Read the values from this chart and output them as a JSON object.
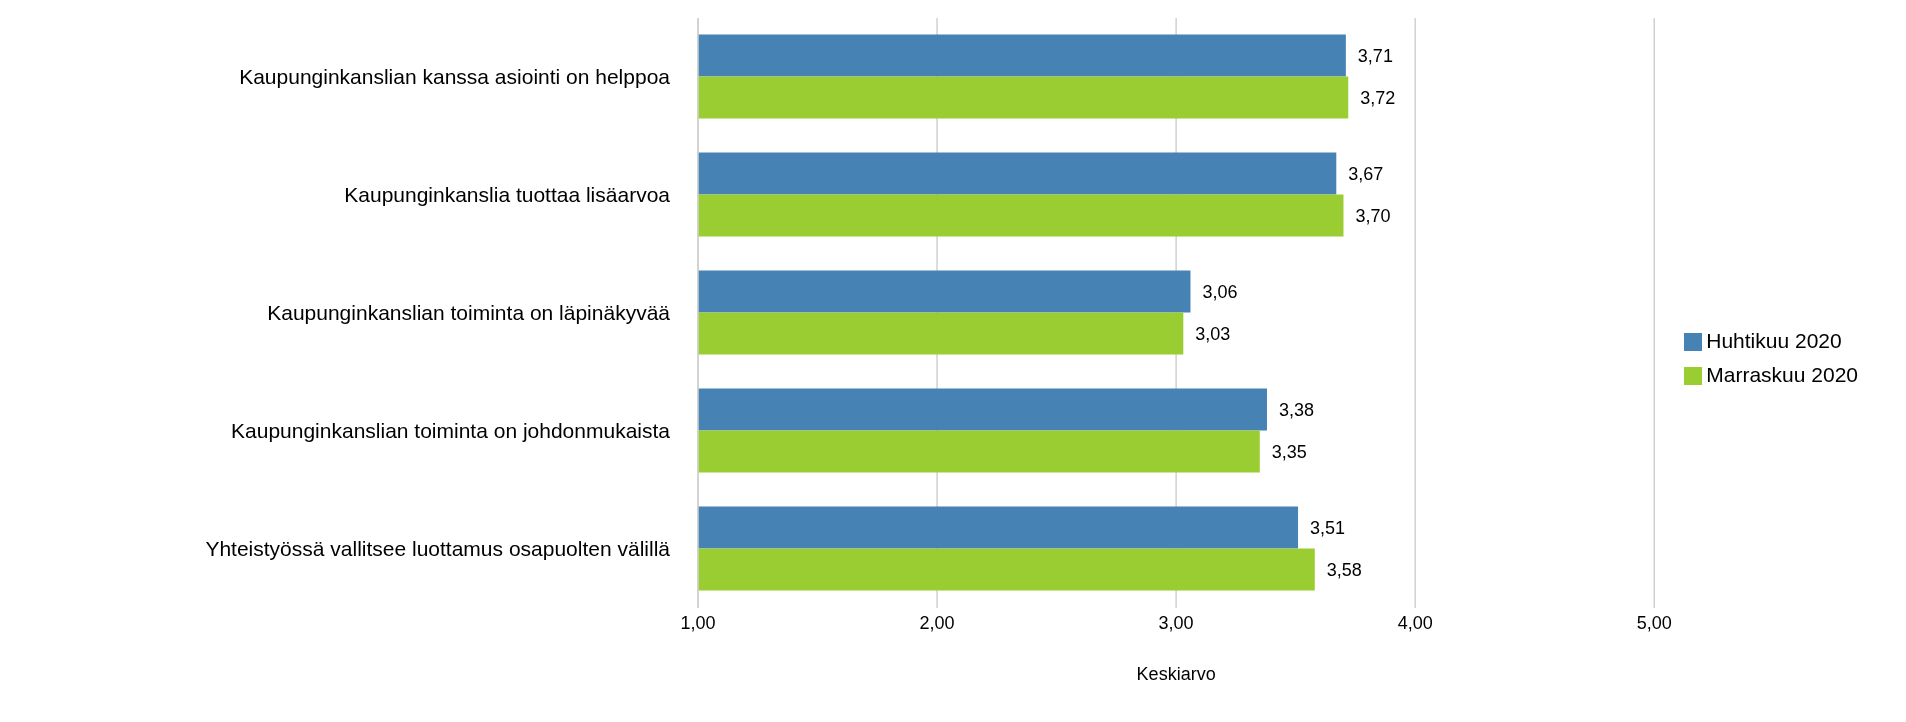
{
  "chart_data": {
    "type": "bar",
    "orientation": "horizontal",
    "xlabel": "Keskiarvo",
    "categories": [
      "Kaupunginkanslian kanssa asiointi on helppoa",
      "Kaupunginkanslia tuottaa lisäarvoa",
      "Kaupunginkanslian toiminta on läpinäkyvää",
      "Kaupunginkanslian toiminta on johdonmukaista",
      "Yhteistyössä vallitsee luottamus osapuolten välillä"
    ],
    "series": [
      {
        "name": "Huhtikuu 2020",
        "color": "#4682b4",
        "values": [
          3.71,
          3.67,
          3.06,
          3.38,
          3.51
        ],
        "value_labels": [
          "3,71",
          "3,67",
          "3,06",
          "3,38",
          "3,51"
        ]
      },
      {
        "name": "Marraskuu 2020",
        "color": "#9acd32",
        "values": [
          3.72,
          3.7,
          3.03,
          3.35,
          3.58
        ],
        "value_labels": [
          "3,72",
          "3,70",
          "3,03",
          "3,35",
          "3,58"
        ]
      }
    ],
    "xlim": [
      1,
      5
    ],
    "xticks": [
      {
        "value": 1,
        "label": "1,00"
      },
      {
        "value": 2,
        "label": "2,00"
      },
      {
        "value": 3,
        "label": "3,00"
      },
      {
        "value": 4,
        "label": "4,00"
      },
      {
        "value": 5,
        "label": "5,00"
      }
    ],
    "grid": "x",
    "legend": "right"
  }
}
